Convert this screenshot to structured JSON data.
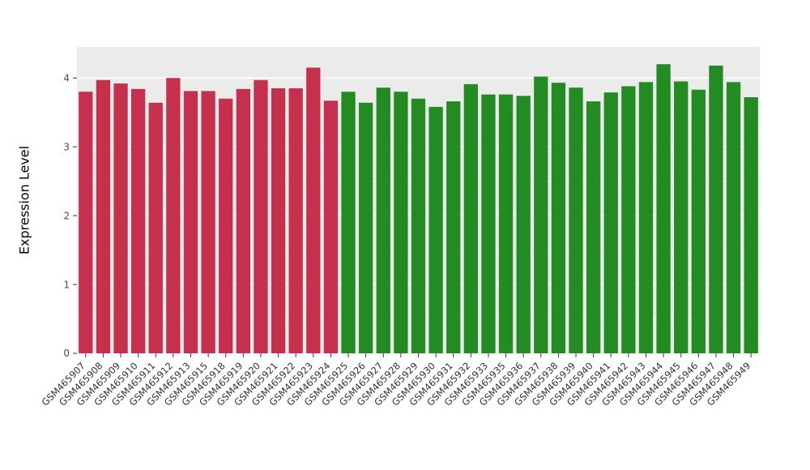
{
  "chart_data": {
    "type": "bar",
    "title": "",
    "xlabel": "",
    "ylabel": "Expression Level",
    "ylim": [
      0,
      4.45
    ],
    "yticks": [
      0,
      1,
      2,
      3,
      4
    ],
    "grid": "white major and minor horizontal gridlines on gray panel",
    "legend_position": "none",
    "panel_bg": "#EBEBEB",
    "grid_color": "#FFFFFF",
    "tick_color": "#333333",
    "group_colors": [
      "#C5304C",
      "#228B22"
    ],
    "categories": [
      "GSM465907",
      "GSM465908",
      "GSM465909",
      "GSM465910",
      "GSM465911",
      "GSM465912",
      "GSM465913",
      "GSM465915",
      "GSM465918",
      "GSM465919",
      "GSM465920",
      "GSM465921",
      "GSM465922",
      "GSM465923",
      "GSM465924",
      "GSM465925",
      "GSM465926",
      "GSM465927",
      "GSM465928",
      "GSM465929",
      "GSM465930",
      "GSM465931",
      "GSM465932",
      "GSM465933",
      "GSM465935",
      "GSM465936",
      "GSM465937",
      "GSM465938",
      "GSM465939",
      "GSM465940",
      "GSM465941",
      "GSM465942",
      "GSM465943",
      "GSM465944",
      "GSM465945",
      "GSM465946",
      "GSM465947",
      "GSM465948",
      "GSM465949"
    ],
    "values": [
      3.8,
      3.97,
      3.92,
      3.84,
      3.64,
      4.0,
      3.81,
      3.81,
      3.7,
      3.84,
      3.97,
      3.85,
      3.85,
      4.15,
      3.67,
      3.8,
      3.64,
      3.86,
      3.8,
      3.7,
      3.58,
      3.66,
      3.91,
      3.76,
      3.76,
      3.74,
      4.02,
      3.93,
      3.86,
      3.66,
      3.79,
      3.88,
      3.94,
      4.2,
      3.95,
      3.83,
      4.18,
      3.94,
      3.72
    ],
    "group_of": [
      0,
      0,
      0,
      0,
      0,
      0,
      0,
      0,
      0,
      0,
      0,
      0,
      0,
      0,
      0,
      1,
      1,
      1,
      1,
      1,
      1,
      1,
      1,
      1,
      1,
      1,
      1,
      1,
      1,
      1,
      1,
      1,
      1,
      1,
      1,
      1,
      1,
      1,
      1
    ]
  }
}
